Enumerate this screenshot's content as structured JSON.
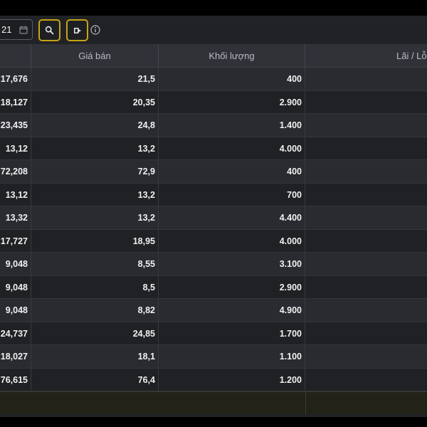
{
  "toolbar": {
    "date_value": "21",
    "calendar_icon": "calendar-icon",
    "search_icon": "search-icon",
    "export_icon": "export-icon",
    "info_icon": "info-icon",
    "button_border_color": "#c7a416"
  },
  "table": {
    "headers": [
      "",
      "Giá bán",
      "Khối lượng",
      "Lãi / Lỗ"
    ],
    "rows": [
      {
        "c0": "17,676",
        "c1": "21,5",
        "c2": "400",
        "c3": ""
      },
      {
        "c0": "18,127",
        "c1": "20,35",
        "c2": "2.900",
        "c3": ""
      },
      {
        "c0": "23,435",
        "c1": "24,8",
        "c2": "1.400",
        "c3": ""
      },
      {
        "c0": "13,12",
        "c1": "13,2",
        "c2": "4.000",
        "c3": ""
      },
      {
        "c0": "72,208",
        "c1": "72,9",
        "c2": "400",
        "c3": ""
      },
      {
        "c0": "13,12",
        "c1": "13,2",
        "c2": "700",
        "c3": ""
      },
      {
        "c0": "13,32",
        "c1": "13,2",
        "c2": "4.400",
        "c3": ""
      },
      {
        "c0": "17,727",
        "c1": "18,95",
        "c2": "4.000",
        "c3": ""
      },
      {
        "c0": "9,048",
        "c1": "8,55",
        "c2": "3.100",
        "c3": ""
      },
      {
        "c0": "9,048",
        "c1": "8,5",
        "c2": "2.900",
        "c3": ""
      },
      {
        "c0": "9,048",
        "c1": "8,82",
        "c2": "4.900",
        "c3": ""
      },
      {
        "c0": "24,737",
        "c1": "24,85",
        "c2": "1.700",
        "c3": ""
      },
      {
        "c0": "18,027",
        "c1": "18,1",
        "c2": "1.100",
        "c3": ""
      },
      {
        "c0": "76,615",
        "c1": "76,4",
        "c2": "1.200",
        "c3": ""
      }
    ],
    "footer": {
      "c0": "",
      "c1": "",
      "c2": "",
      "c3": ""
    }
  }
}
